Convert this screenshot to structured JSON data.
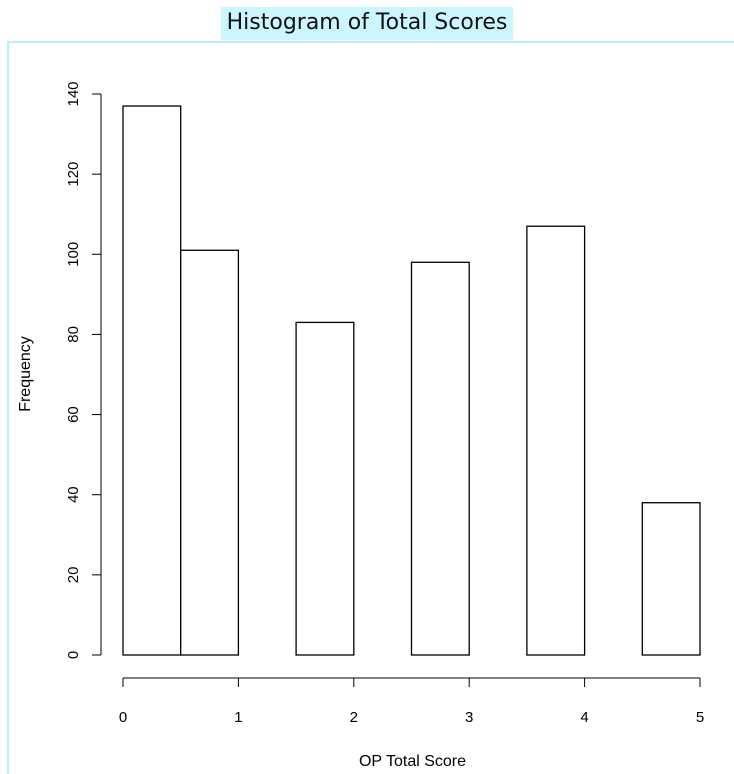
{
  "chart_data": {
    "type": "bar",
    "title": "Histogram of Total Scores",
    "xlabel": "OP Total Score",
    "ylabel": "Frequency",
    "bins": [
      {
        "start": 0.0,
        "end": 0.5,
        "value": 137
      },
      {
        "start": 0.5,
        "end": 1.0,
        "value": 101
      },
      {
        "start": 1.5,
        "end": 2.0,
        "value": 83
      },
      {
        "start": 2.5,
        "end": 3.0,
        "value": 98
      },
      {
        "start": 3.5,
        "end": 4.0,
        "value": 107
      },
      {
        "start": 4.5,
        "end": 5.0,
        "value": 38
      }
    ],
    "xlim": [
      0,
      5
    ],
    "ylim": [
      0,
      140
    ],
    "xticks": [
      0,
      1,
      2,
      3,
      4,
      5
    ],
    "yticks": [
      0,
      20,
      40,
      60,
      80,
      100,
      120,
      140
    ],
    "grid": false,
    "colors": {
      "bar_fill": "#ffffff",
      "bar_stroke": "#000000",
      "title_highlight": "#ccf6ff",
      "frame_border": "#b8efff"
    }
  }
}
